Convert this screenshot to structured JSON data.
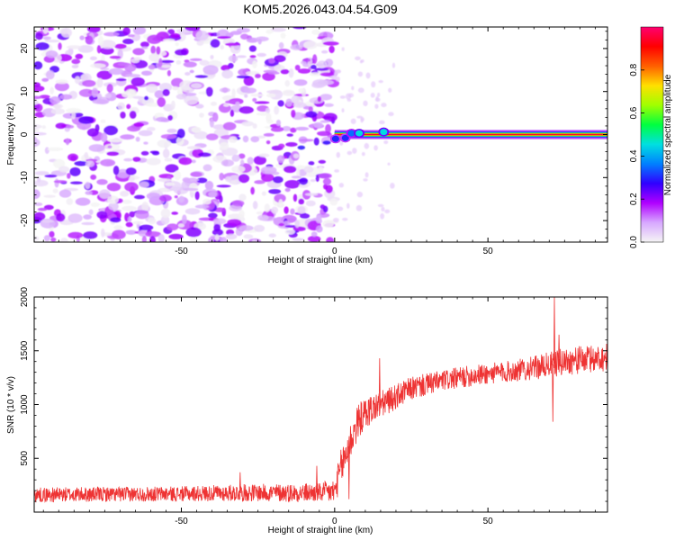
{
  "title": "KOM5.2026.043.04.54.G09",
  "chart_data": [
    {
      "type": "heatmap",
      "id": "spectrogram",
      "xlabel": "Height of straight line (km)",
      "ylabel": "Frequency (Hz)",
      "xlim": [
        -98,
        89
      ],
      "ylim": [
        -25,
        25
      ],
      "xticks": [
        -50,
        0,
        50
      ],
      "xtick_labels": [
        "-50",
        "0",
        "50"
      ],
      "yticks": [
        -20,
        -10,
        0,
        10,
        20
      ],
      "ytick_labels": [
        "-20",
        "-10",
        "0",
        "10",
        "20"
      ],
      "colorbar": {
        "label": "Normalized spectral amplitude",
        "range": [
          0,
          1
        ],
        "ticks": [
          0.0,
          0.2,
          0.4,
          0.6,
          0.8
        ],
        "tick_labels": [
          "0.0",
          "0.2",
          "0.4",
          "0.6",
          "0.8"
        ],
        "colors": [
          "#f5f5f5",
          "#d7a8ff",
          "#b000ff",
          "#3000ff",
          "#0080ff",
          "#00e0e0",
          "#00ff40",
          "#a0ff00",
          "#ffe000",
          "#ff6000",
          "#ff0000",
          "#ff0070"
        ]
      },
      "features": {
        "noise_region_x": [
          -98,
          0
        ],
        "noise_amplitude_range": [
          0.0,
          0.25
        ],
        "carrier_start_x": 0,
        "carrier_frequency_hz": 0,
        "carrier_amplitude": 0.95,
        "transition_blobs": [
          {
            "x": 0.3,
            "freq": -1.0,
            "amp": 0.3
          },
          {
            "x": 3.5,
            "freq": -0.8,
            "amp": 0.3
          },
          {
            "x": 5.5,
            "freq": 0.3,
            "amp": 0.35
          },
          {
            "x": 8.0,
            "freq": 0.3,
            "amp": 0.45
          },
          {
            "x": 16.0,
            "freq": 0.6,
            "amp": 0.45
          }
        ]
      }
    },
    {
      "type": "line",
      "id": "snr",
      "xlabel": "Height of straight line (km)",
      "ylabel": "SNR (10 * v/v)",
      "xlim": [
        -98,
        89
      ],
      "ylim": [
        0,
        2000
      ],
      "xticks": [
        -50,
        0,
        50
      ],
      "xtick_labels": [
        "-50",
        "0",
        "50"
      ],
      "yticks": [
        500,
        1000,
        1500,
        2000
      ],
      "ytick_labels": [
        "500",
        "1000",
        "1500",
        "2000"
      ],
      "series": [
        {
          "name": "SNR",
          "color": "#ee3333",
          "trend_x": [
            -98,
            -50,
            -30,
            -5,
            0,
            2,
            5,
            8,
            12,
            18,
            25,
            35,
            45,
            55,
            65,
            75,
            89
          ],
          "trend_y": [
            160,
            170,
            180,
            180,
            190,
            400,
            650,
            860,
            960,
            1040,
            1150,
            1220,
            1270,
            1300,
            1340,
            1400,
            1440
          ],
          "noise_amplitude": [
            70,
            70,
            80,
            90,
            120,
            180,
            180,
            160,
            140,
            120,
            110,
            100,
            100,
            100,
            110,
            130,
            130
          ],
          "spikes": [
            {
              "x": -31,
              "y": 370
            },
            {
              "x": -6,
              "y": 430
            },
            {
              "x": 14.5,
              "y": 1430
            },
            {
              "x": 71.5,
              "y": 2000
            },
            {
              "x": 73,
              "y": 1650
            },
            {
              "x": 71,
              "y": 840
            },
            {
              "x": 4.5,
              "y": 120
            }
          ]
        }
      ]
    }
  ]
}
